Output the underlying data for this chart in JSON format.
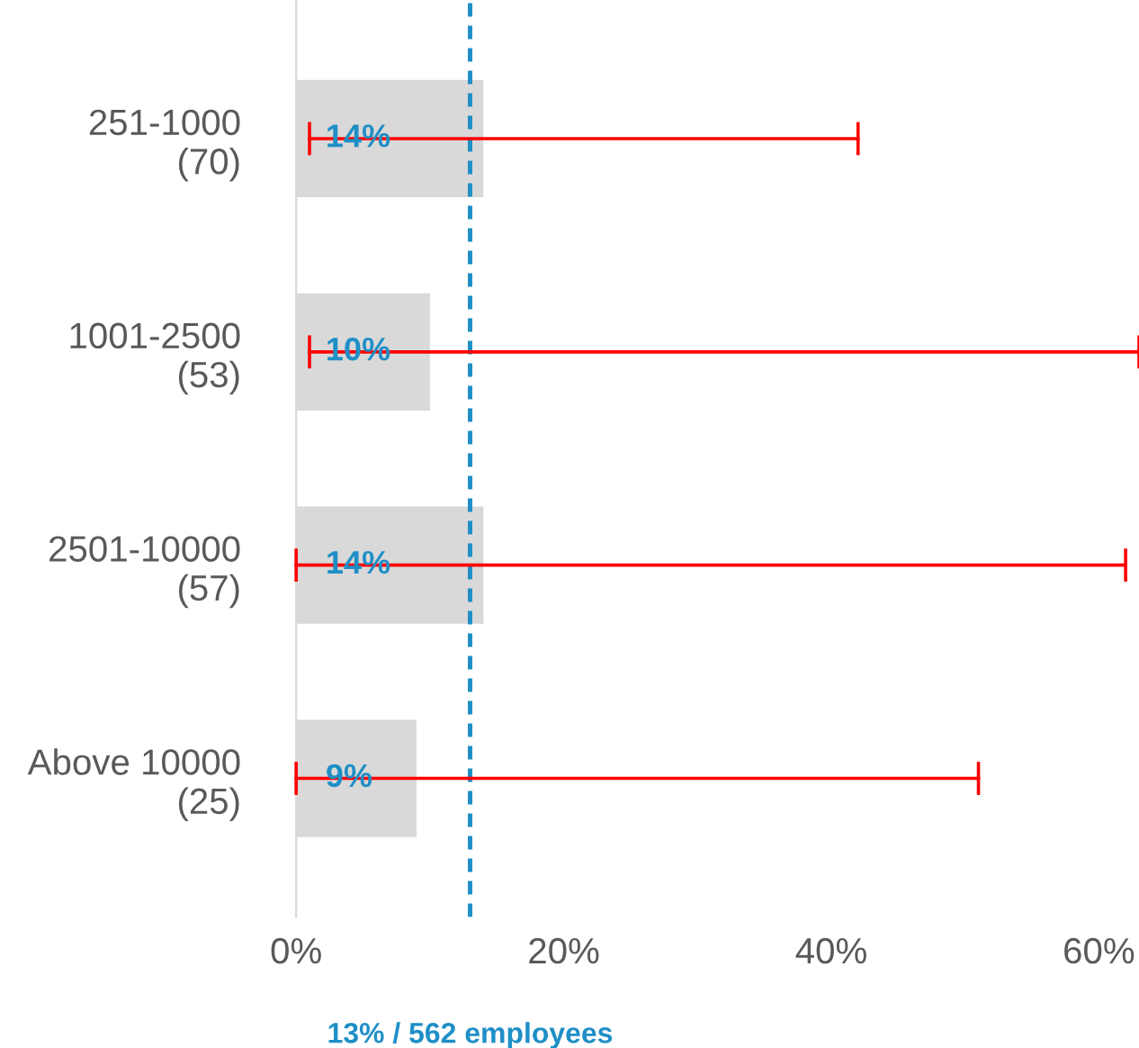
{
  "chart_data": {
    "type": "bar",
    "orientation": "horizontal",
    "categories": [
      "251-1000\n(70)",
      "1001-2500\n(53)",
      "2501-10000\n(57)",
      "Above 10000\n(25)"
    ],
    "values": [
      14,
      10,
      14,
      9
    ],
    "value_labels": [
      "14%",
      "10%",
      "14%",
      "9%"
    ],
    "errors": [
      [
        1,
        42
      ],
      [
        1,
        63
      ],
      [
        0,
        62
      ],
      [
        0,
        51
      ]
    ],
    "color": "#d9d9d9",
    "xlim": [
      0,
      63
    ],
    "xticks": [
      {
        "value": 0,
        "label": "0%"
      },
      {
        "value": 20,
        "label": "20%"
      },
      {
        "value": 40,
        "label": "40%"
      },
      {
        "value": 60,
        "label": "60%"
      }
    ],
    "ref_lines": [
      {
        "axis": "x",
        "value": 13,
        "label": "13% / 562 employees",
        "color": "#1f8fc6",
        "line_style": "dashed"
      }
    ],
    "grid": false,
    "legend": false
  }
}
